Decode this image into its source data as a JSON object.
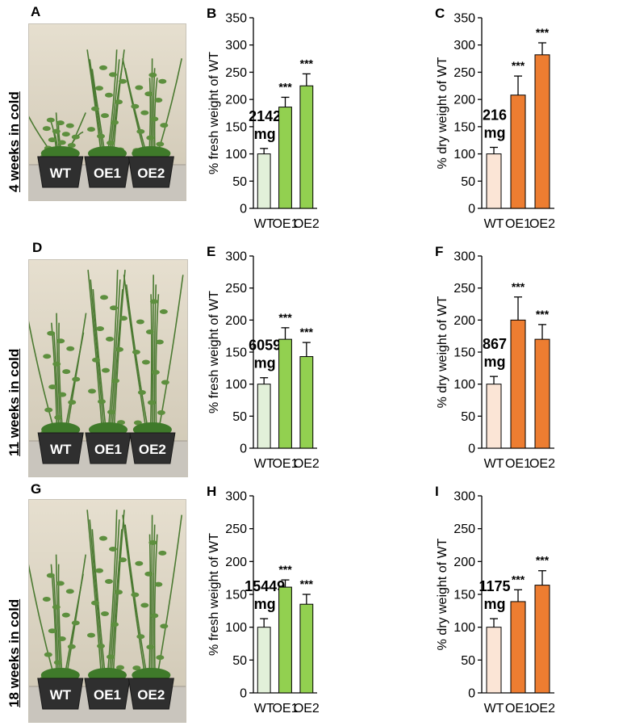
{
  "rows": [
    {
      "label": "4 weeks in cold",
      "photo_letter": "A",
      "pot_labels": [
        "WT",
        "OE1",
        "OE2"
      ]
    },
    {
      "label": "11 weeks in cold",
      "photo_letter": "D",
      "pot_labels": [
        "WT",
        "OE1",
        "OE2"
      ]
    },
    {
      "label": "18 weeks in cold",
      "photo_letter": "G",
      "pot_labels": [
        "WT",
        "OE1",
        "OE2"
      ]
    }
  ],
  "colors": {
    "fresh_wt": "#e2f0d9",
    "fresh_oe": "#92d050",
    "dry_wt": "#fbe5d6",
    "dry_oe": "#ed7d31",
    "photo_bg": "#d9d2c3",
    "plant": "#4b7a32"
  },
  "chart_data": [
    {
      "letter": "B",
      "type": "bar",
      "categories": [
        "WT",
        "OE1",
        "OE2"
      ],
      "values": [
        100,
        186,
        225
      ],
      "errors": [
        10,
        18,
        22
      ],
      "ylabel": "% fresh weight of WT",
      "ylim": [
        0,
        350
      ],
      "yticks": [
        0,
        50,
        100,
        150,
        200,
        250,
        300,
        350
      ],
      "reference": [
        "2142",
        "mg"
      ],
      "significance": [
        "",
        "***",
        "***"
      ],
      "kind": "fresh"
    },
    {
      "letter": "C",
      "type": "bar",
      "categories": [
        "WT",
        "OE1",
        "OE2"
      ],
      "values": [
        100,
        208,
        282
      ],
      "errors": [
        12,
        35,
        22
      ],
      "ylabel": "% dry weight of WT",
      "ylim": [
        0,
        350
      ],
      "yticks": [
        0,
        50,
        100,
        150,
        200,
        250,
        300,
        350
      ],
      "reference": [
        "216",
        "mg"
      ],
      "significance": [
        "",
        "***",
        "***"
      ],
      "kind": "dry"
    },
    {
      "letter": "E",
      "type": "bar",
      "categories": [
        "WT",
        "OE1",
        "OE2"
      ],
      "values": [
        100,
        170,
        143
      ],
      "errors": [
        10,
        18,
        22
      ],
      "ylabel": "% fresh weight of WT",
      "ylim": [
        0,
        300
      ],
      "yticks": [
        0,
        50,
        100,
        150,
        200,
        250,
        300
      ],
      "reference": [
        "6059",
        "mg"
      ],
      "significance": [
        "",
        "***",
        "***"
      ],
      "kind": "fresh"
    },
    {
      "letter": "F",
      "type": "bar",
      "categories": [
        "WT",
        "OE1",
        "OE2"
      ],
      "values": [
        100,
        200,
        170
      ],
      "errors": [
        12,
        36,
        23
      ],
      "ylabel": "% dry weight of WT",
      "ylim": [
        0,
        300
      ],
      "yticks": [
        0,
        50,
        100,
        150,
        200,
        250,
        300
      ],
      "reference": [
        "867",
        "mg"
      ],
      "significance": [
        "",
        "***",
        "***"
      ],
      "kind": "dry"
    },
    {
      "letter": "H",
      "type": "bar",
      "categories": [
        "WT",
        "OE1",
        "OE2"
      ],
      "values": [
        100,
        161,
        135
      ],
      "errors": [
        13,
        11,
        15
      ],
      "ylabel": "% fresh weight of WT",
      "ylim": [
        0,
        300
      ],
      "yticks": [
        0,
        50,
        100,
        150,
        200,
        250,
        300
      ],
      "reference": [
        "15449",
        "mg"
      ],
      "significance": [
        "",
        "***",
        "***"
      ],
      "kind": "fresh"
    },
    {
      "letter": "I",
      "type": "bar",
      "categories": [
        "WT",
        "OE1",
        "OE2"
      ],
      "values": [
        100,
        139,
        164
      ],
      "errors": [
        13,
        18,
        22
      ],
      "ylabel": "% dry weight of WT",
      "ylim": [
        0,
        300
      ],
      "yticks": [
        0,
        50,
        100,
        150,
        200,
        250,
        300
      ],
      "reference": [
        "1175",
        "mg"
      ],
      "significance": [
        "",
        "***",
        "***"
      ],
      "kind": "dry"
    }
  ]
}
